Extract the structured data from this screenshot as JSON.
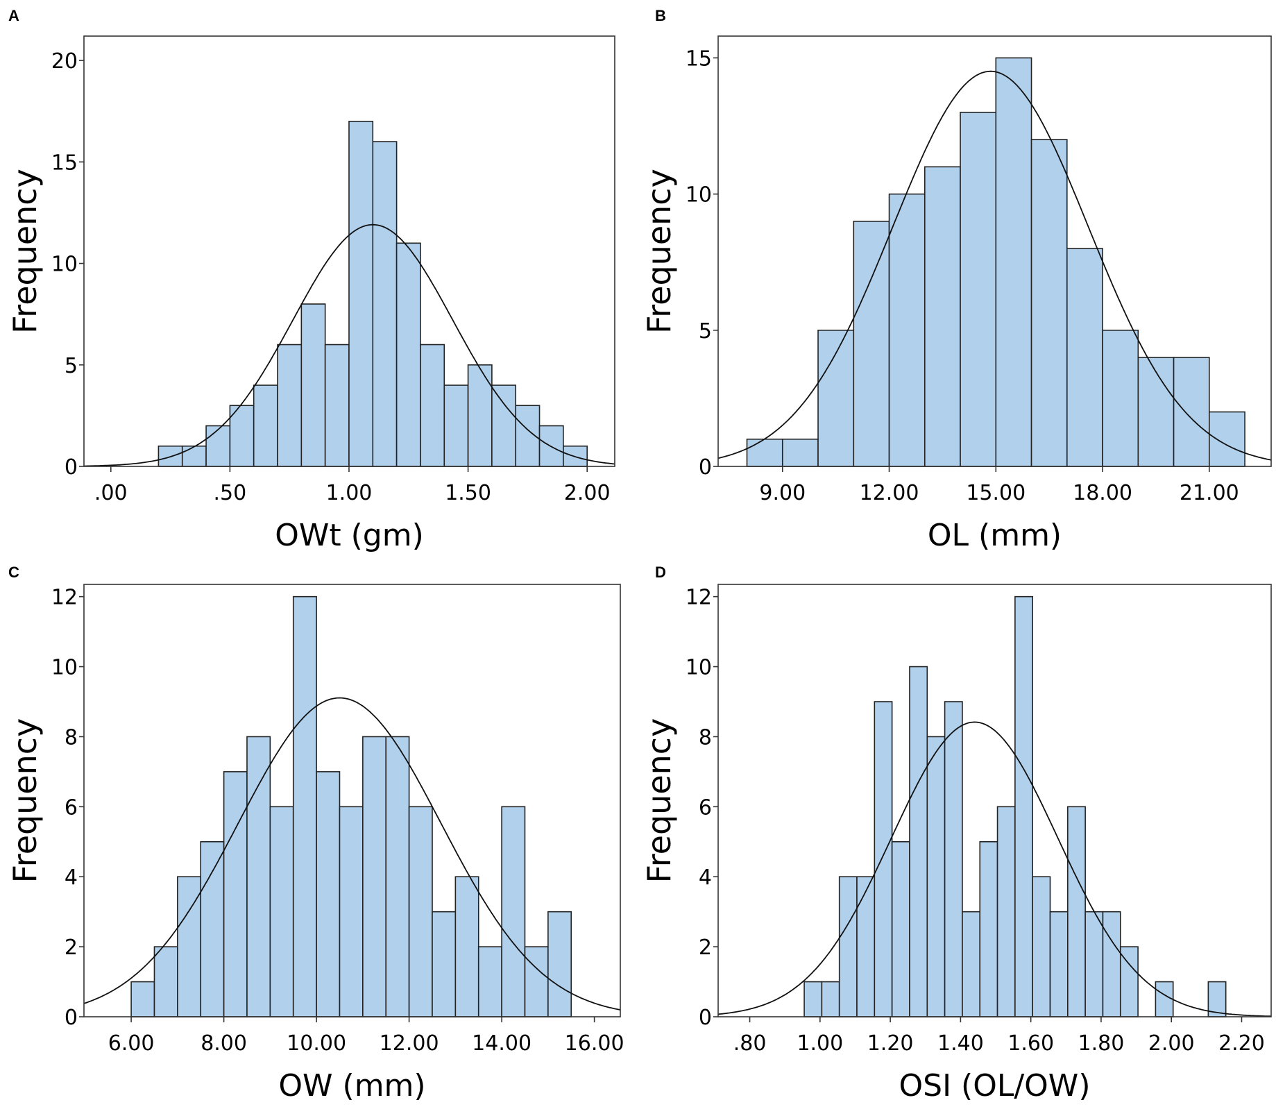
{
  "colors": {
    "bar_fill": "#b0d0ec",
    "bar_stroke": "#222222",
    "curve": "#111111",
    "frame": "#333333"
  },
  "chart_data": [
    {
      "panel": "A",
      "type": "bar",
      "subtype": "histogram",
      "xlabel": "OWt (gm)",
      "ylabel": "Frequency",
      "xlim": [
        -0.113,
        2.116
      ],
      "ylim": [
        0,
        21.2
      ],
      "xticks": [
        0,
        0.5,
        1.0,
        1.5,
        2.0
      ],
      "xtick_labels": [
        ".00",
        ".50",
        "1.00",
        "1.50",
        "2.00"
      ],
      "yticks": [
        0,
        5,
        10,
        15,
        20
      ],
      "ytick_labels": [
        "0",
        "5",
        "10",
        "15",
        "20"
      ],
      "bin_start": 0.2,
      "bin_width": 0.1,
      "values": [
        1,
        1,
        2,
        3,
        4,
        6,
        8,
        6,
        17,
        16,
        11,
        6,
        4,
        5,
        4,
        3,
        2,
        1
      ],
      "normal_curve": {
        "mean": 1.1,
        "sd": 0.335,
        "n": 100
      }
    },
    {
      "panel": "B",
      "type": "bar",
      "subtype": "histogram",
      "xlabel": "OL (mm)",
      "ylabel": "Frequency",
      "xlim": [
        7.19,
        22.74
      ],
      "ylim": [
        0,
        15.8
      ],
      "xticks": [
        9,
        12,
        15,
        18,
        21
      ],
      "xtick_labels": [
        "9.00",
        "12.00",
        "15.00",
        "18.00",
        "21.00"
      ],
      "yticks": [
        0,
        5,
        10,
        15
      ],
      "ytick_labels": [
        "0",
        "5",
        "10",
        "15"
      ],
      "bin_start": 8,
      "bin_width": 1,
      "values": [
        1,
        1,
        5,
        9,
        10,
        11,
        13,
        15,
        12,
        8,
        5,
        4,
        4,
        2
      ],
      "normal_curve": {
        "mean": 14.85,
        "sd": 2.75,
        "n": 100
      }
    },
    {
      "panel": "C",
      "type": "bar",
      "subtype": "histogram",
      "xlabel": "OW (mm)",
      "ylabel": "Frequency",
      "xlim": [
        4.98,
        16.56
      ],
      "ylim": [
        0,
        12.35
      ],
      "xticks": [
        6,
        8,
        10,
        12,
        14,
        16
      ],
      "xtick_labels": [
        "6.00",
        "8.00",
        "10.00",
        "12.00",
        "14.00",
        "16.00"
      ],
      "yticks": [
        0,
        2,
        4,
        6,
        8,
        10,
        12
      ],
      "ytick_labels": [
        "0",
        "2",
        "4",
        "6",
        "8",
        "10",
        "12"
      ],
      "bin_start": 6,
      "bin_width": 0.5,
      "values": [
        1,
        2,
        4,
        5,
        7,
        8,
        6,
        12,
        7,
        6,
        8,
        8,
        6,
        3,
        4,
        2,
        6,
        2,
        3
      ],
      "normal_curve": {
        "mean": 10.5,
        "sd": 2.19,
        "n": 100
      }
    },
    {
      "panel": "D",
      "type": "bar",
      "subtype": "histogram",
      "xlabel": "OSI (OL/OW)",
      "ylabel": "Frequency",
      "xlim": [
        0.71,
        2.284
      ],
      "ylim": [
        0,
        12.35
      ],
      "xticks": [
        0.8,
        1.0,
        1.2,
        1.4,
        1.6,
        1.8,
        2.0,
        2.2
      ],
      "xtick_labels": [
        ".80",
        "1.00",
        "1.20",
        "1.40",
        "1.60",
        "1.80",
        "2.00",
        "2.20"
      ],
      "yticks": [
        0,
        2,
        4,
        6,
        8,
        10,
        12
      ],
      "ytick_labels": [
        "0",
        "2",
        "4",
        "6",
        "8",
        "10",
        "12"
      ],
      "bin_start": 0.955,
      "bin_width": 0.05,
      "values": [
        1,
        1,
        4,
        4,
        9,
        5,
        10,
        8,
        9,
        3,
        5,
        6,
        12,
        4,
        3,
        6,
        3,
        3,
        2,
        0,
        1,
        0,
        0,
        1
      ],
      "normal_curve": {
        "mean": 1.44,
        "sd": 0.237,
        "n": 100
      }
    }
  ]
}
